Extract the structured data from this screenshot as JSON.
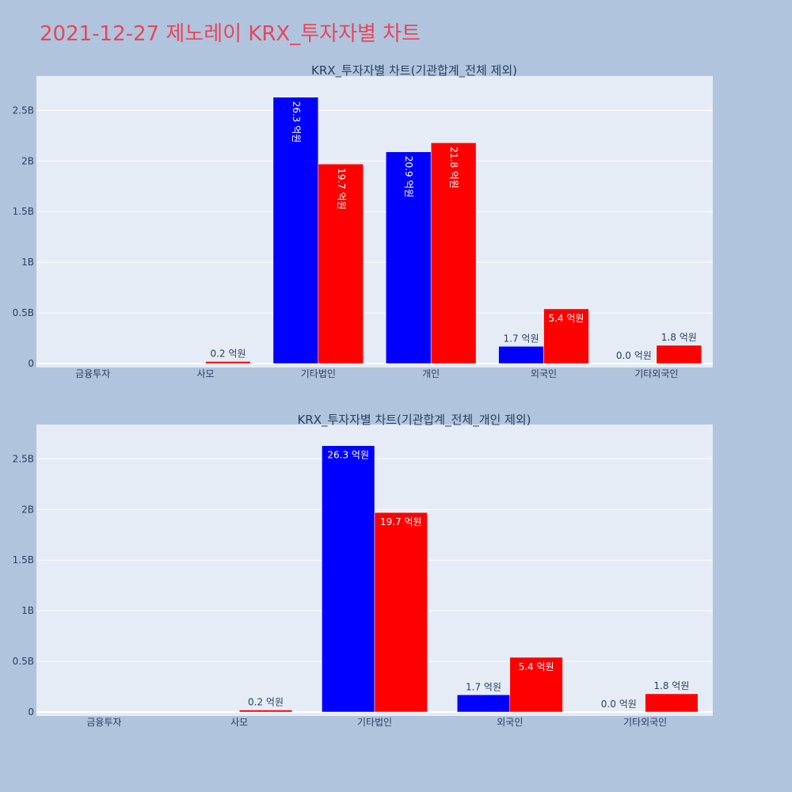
{
  "page": {
    "title": "2021-12-27 제노레이 KRX_투자자별 차트"
  },
  "colors": {
    "page_bg": "#b0c4de",
    "plot_bg": "#e5ecf6",
    "grid": "#ffffff",
    "title": "#e8455a",
    "text": "#2a3f5f",
    "series_blue": "#0000ff",
    "series_red": "#ff0000"
  },
  "chart_data": [
    {
      "type": "bar",
      "title": "KRX_투자자별 차트(기관합계_전체 제외)",
      "categories": [
        "금융투자",
        "사모",
        "기타법인",
        "개인",
        "외국인",
        "기타외국인"
      ],
      "series": [
        {
          "color": "#0000ff",
          "values": [
            0,
            0,
            2630000000,
            2090000000,
            170000000,
            0
          ],
          "labels": [
            "",
            "",
            "26.3 억원",
            "20.9 억원",
            "1.7 억원",
            "0.0 억원"
          ],
          "label_rotated": [
            false,
            false,
            true,
            true,
            false,
            false
          ]
        },
        {
          "color": "#ff0000",
          "values": [
            0,
            20000000,
            1970000000,
            2180000000,
            540000000,
            180000000
          ],
          "labels": [
            "",
            "0.2 억원",
            "19.7 억원",
            "21.8 억원",
            "5.4 억원",
            "1.8 억원"
          ],
          "label_rotated": [
            false,
            false,
            true,
            true,
            false,
            false
          ]
        }
      ],
      "ylim": [
        0,
        2800000000
      ],
      "yticks": [
        0,
        500000000,
        1000000000,
        1500000000,
        2000000000,
        2500000000
      ],
      "ytick_labels": [
        "0",
        "0.5B",
        "1B",
        "1.5B",
        "2B",
        "2.5B"
      ],
      "grid": true
    },
    {
      "type": "bar",
      "title": "KRX_투자자별 차트(기관합계_전체_개인 제외)",
      "categories": [
        "금융투자",
        "사모",
        "기타법인",
        "외국인",
        "기타외국인"
      ],
      "series": [
        {
          "color": "#0000ff",
          "values": [
            0,
            0,
            2630000000,
            170000000,
            0
          ],
          "labels": [
            "",
            "",
            "26.3 억원",
            "1.7 억원",
            "0.0 억원"
          ],
          "label_rotated": [
            false,
            false,
            false,
            false,
            false
          ]
        },
        {
          "color": "#ff0000",
          "values": [
            0,
            20000000,
            1970000000,
            540000000,
            180000000
          ],
          "labels": [
            "",
            "0.2 억원",
            "19.7 억원",
            "5.4 억원",
            "1.8 억원"
          ],
          "label_rotated": [
            false,
            false,
            false,
            false,
            false
          ]
        }
      ],
      "ylim": [
        0,
        2800000000
      ],
      "yticks": [
        0,
        500000000,
        1000000000,
        1500000000,
        2000000000,
        2500000000
      ],
      "ytick_labels": [
        "0",
        "0.5B",
        "1B",
        "1.5B",
        "2B",
        "2.5B"
      ],
      "grid": true
    }
  ]
}
